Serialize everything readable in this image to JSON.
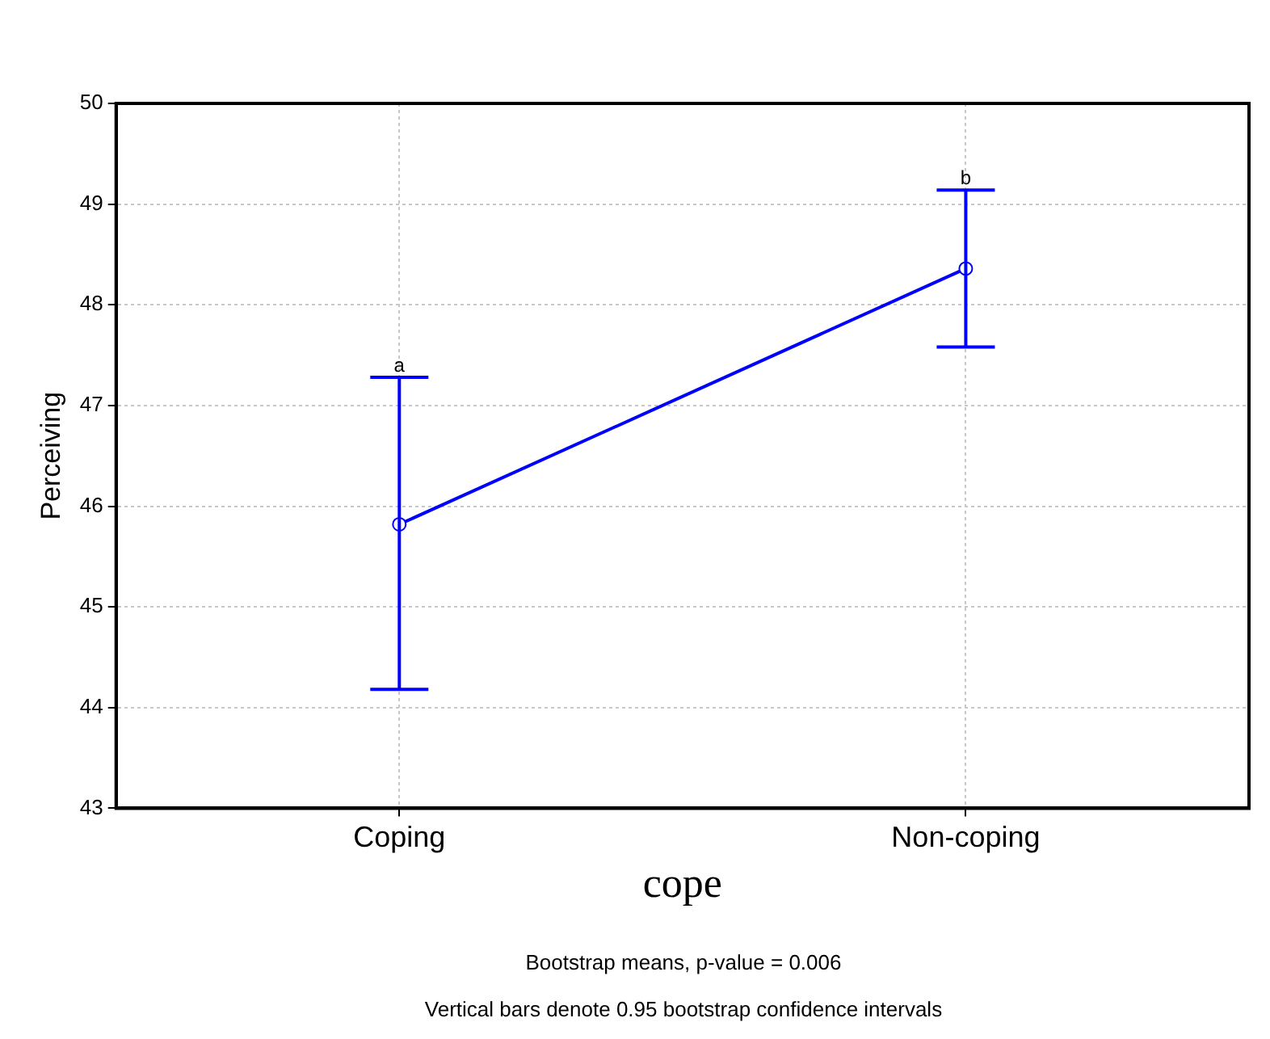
{
  "chart_data": {
    "type": "line",
    "xlabel": "cope",
    "ylabel": "Perceiving",
    "categories": [
      "Coping",
      "Non-coping"
    ],
    "series": [
      {
        "color": "#0000ff",
        "values": [
          45.82,
          48.36
        ],
        "errors": [
          [
            44.18,
            47.28
          ],
          [
            47.58,
            49.14
          ]
        ]
      }
    ],
    "ylim": [
      43,
      50
    ],
    "yticks": [
      43,
      44,
      45,
      46,
      47,
      48,
      49,
      50
    ],
    "grid": true,
    "legend": false,
    "marker": "circle",
    "line_style": "solid",
    "annotations": [
      "a",
      "b",
      "Bootstrap means, p-value = 0.006",
      "Vertical bars denote 0.95 bootstrap confidence intervals"
    ]
  }
}
